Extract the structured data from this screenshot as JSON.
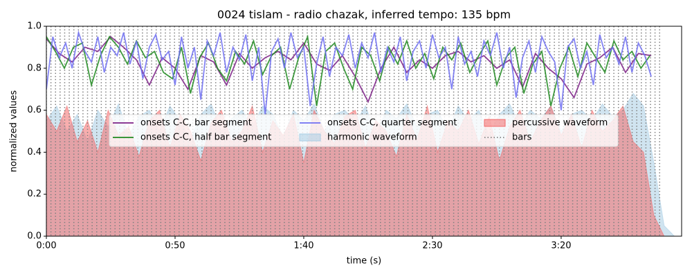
{
  "chart_data": {
    "type": "line",
    "title": "0024 tislam - radio chazak, inferred tempo: 135 bpm",
    "xlabel": "time (s)",
    "ylabel": "normalized values",
    "xlim": [
      0,
      246.8
    ],
    "ylim": [
      0,
      1
    ],
    "xticks": [
      {
        "value": 0,
        "label": "0:00"
      },
      {
        "value": 50,
        "label": "0:50"
      },
      {
        "value": 100,
        "label": "1:40"
      },
      {
        "value": 150,
        "label": "2:30"
      },
      {
        "value": 200,
        "label": "3:20"
      }
    ],
    "yticks": [
      {
        "value": 0,
        "label": "0.0"
      },
      0.2,
      0.4,
      0.6,
      0.8,
      {
        "value": 1,
        "label": "1.0"
      }
    ],
    "legend": "upper center",
    "series": [
      {
        "name": "onsets C-C, bar segment",
        "mark": "line",
        "color": "#7b1f86",
        "x": [
          0,
          5,
          10,
          15,
          20,
          25,
          30,
          35,
          40,
          45,
          50,
          55,
          60,
          65,
          70,
          75,
          80,
          85,
          90,
          95,
          100,
          105,
          110,
          115,
          120,
          125,
          130,
          135,
          140,
          145,
          150,
          155,
          160,
          165,
          170,
          175,
          180,
          185,
          190,
          195,
          200,
          205,
          210,
          215,
          220,
          225,
          230,
          235
        ],
        "values": [
          0.94,
          0.87,
          0.83,
          0.9,
          0.88,
          0.95,
          0.9,
          0.84,
          0.72,
          0.85,
          0.8,
          0.7,
          0.86,
          0.83,
          0.72,
          0.87,
          0.8,
          0.85,
          0.88,
          0.84,
          0.92,
          0.82,
          0.79,
          0.86,
          0.76,
          0.64,
          0.8,
          0.9,
          0.78,
          0.84,
          0.8,
          0.86,
          0.88,
          0.83,
          0.86,
          0.8,
          0.84,
          0.71,
          0.87,
          0.8,
          0.75,
          0.66,
          0.82,
          0.85,
          0.9,
          0.78,
          0.87,
          0.86
        ]
      },
      {
        "name": "onsets C-C, half bar segment",
        "mark": "line",
        "color": "#1f8a1f",
        "x": [
          0,
          3.5,
          7,
          10.5,
          14,
          17.5,
          21,
          24.5,
          28,
          31.5,
          35,
          38.5,
          42,
          45.5,
          49,
          52.5,
          56,
          59.5,
          63,
          66.5,
          70,
          73.5,
          77,
          80.5,
          84,
          87.5,
          91,
          94.5,
          98,
          101.5,
          105,
          108.5,
          112,
          115.5,
          119,
          122.5,
          126,
          129.5,
          133,
          136.5,
          140,
          143.5,
          147,
          150.5,
          154,
          157.5,
          161,
          164.5,
          168,
          171.5,
          175,
          178.5,
          182,
          185.5,
          189,
          192.5,
          196,
          199.5,
          203,
          206.5,
          210,
          213.5,
          217,
          220.5,
          224,
          227.5,
          231,
          234.5
        ],
        "values": [
          0.95,
          0.88,
          0.8,
          0.9,
          0.92,
          0.72,
          0.86,
          0.95,
          0.9,
          0.82,
          0.93,
          0.85,
          0.88,
          0.78,
          0.75,
          0.9,
          0.68,
          0.85,
          0.92,
          0.8,
          0.74,
          0.88,
          0.82,
          0.93,
          0.77,
          0.86,
          0.9,
          0.7,
          0.85,
          0.95,
          0.62,
          0.88,
          0.92,
          0.8,
          0.7,
          0.9,
          0.86,
          0.74,
          0.9,
          0.82,
          0.93,
          0.8,
          0.87,
          0.75,
          0.9,
          0.84,
          0.92,
          0.78,
          0.86,
          0.93,
          0.72,
          0.85,
          0.9,
          0.68,
          0.82,
          0.88,
          0.62,
          0.8,
          0.9,
          0.76,
          0.92,
          0.85,
          0.78,
          0.93,
          0.84,
          0.88,
          0.8,
          0.86
        ]
      },
      {
        "name": "onsets C-C, quarter segment",
        "mark": "line",
        "color": "#6e6ef2",
        "x": [
          0,
          2.5,
          5,
          7.5,
          10,
          12.5,
          15,
          17.5,
          20,
          22.5,
          25,
          27.5,
          30,
          32.5,
          35,
          37.5,
          40,
          42.5,
          45,
          47.5,
          50,
          52.5,
          55,
          57.5,
          60,
          62.5,
          65,
          67.5,
          70,
          72.5,
          75,
          77.5,
          80,
          82.5,
          85,
          87.5,
          90,
          92.5,
          95,
          97.5,
          100,
          102.5,
          105,
          107.5,
          110,
          112.5,
          115,
          117.5,
          120,
          122.5,
          125,
          127.5,
          130,
          132.5,
          135,
          137.5,
          140,
          142.5,
          145,
          147.5,
          150,
          152.5,
          155,
          157.5,
          160,
          162.5,
          165,
          167.5,
          170,
          172.5,
          175,
          177.5,
          180,
          182.5,
          185,
          187.5,
          190,
          192.5,
          195,
          197.5,
          200,
          202.5,
          205,
          207.5,
          210,
          212.5,
          215,
          217.5,
          220,
          222.5,
          225,
          227.5,
          230,
          232.5,
          235
        ],
        "values": [
          0.7,
          0.95,
          0.85,
          0.92,
          0.8,
          0.97,
          0.88,
          0.83,
          0.95,
          0.78,
          0.9,
          0.86,
          0.97,
          0.82,
          0.93,
          0.75,
          0.9,
          0.96,
          0.84,
          0.88,
          0.72,
          0.95,
          0.8,
          0.9,
          0.65,
          0.93,
          0.86,
          0.97,
          0.78,
          0.9,
          0.84,
          0.96,
          0.74,
          0.9,
          0.58,
          0.88,
          0.94,
          0.8,
          0.97,
          0.85,
          0.9,
          0.62,
          0.82,
          0.95,
          0.76,
          0.9,
          0.86,
          0.96,
          0.8,
          0.92,
          0.85,
          0.97,
          0.78,
          0.9,
          0.83,
          0.95,
          0.74,
          0.88,
          0.93,
          0.8,
          0.96,
          0.85,
          0.9,
          0.7,
          0.95,
          0.82,
          0.88,
          0.76,
          0.93,
          0.86,
          0.97,
          0.8,
          0.9,
          0.66,
          0.85,
          0.93,
          0.78,
          0.95,
          0.88,
          0.83,
          0.6,
          0.9,
          0.94,
          0.8,
          0.88,
          0.72,
          0.96,
          0.85,
          0.9,
          0.82,
          0.95,
          0.78,
          0.92,
          0.86,
          0.76
        ]
      },
      {
        "name": "harmonic waveform",
        "mark": "area",
        "color": "#a9cde4",
        "x": [
          0,
          4,
          8,
          12,
          16,
          20,
          24,
          28,
          32,
          36,
          40,
          44,
          48,
          52,
          56,
          60,
          64,
          68,
          72,
          76,
          80,
          84,
          88,
          92,
          96,
          100,
          104,
          108,
          112,
          116,
          120,
          124,
          128,
          132,
          136,
          140,
          144,
          148,
          152,
          156,
          160,
          164,
          168,
          172,
          176,
          180,
          184,
          188,
          192,
          196,
          200,
          204,
          208,
          212,
          216,
          220,
          224,
          228,
          232,
          236,
          240,
          244
        ],
        "values": [
          0.55,
          0.62,
          0.5,
          0.58,
          0.45,
          0.6,
          0.52,
          0.63,
          0.48,
          0.57,
          0.6,
          0.5,
          0.62,
          0.55,
          0.46,
          0.58,
          0.63,
          0.5,
          0.56,
          0.6,
          0.52,
          0.62,
          0.58,
          0.47,
          0.6,
          0.55,
          0.63,
          0.5,
          0.58,
          0.6,
          0.54,
          0.62,
          0.48,
          0.6,
          0.56,
          0.63,
          0.52,
          0.58,
          0.6,
          0.5,
          0.62,
          0.55,
          0.6,
          0.48,
          0.58,
          0.63,
          0.52,
          0.6,
          0.56,
          0.62,
          0.5,
          0.58,
          0.6,
          0.55,
          0.63,
          0.57,
          0.6,
          0.68,
          0.62,
          0.35,
          0.05,
          0
        ]
      },
      {
        "name": "percussive waveform",
        "mark": "area",
        "color": "#f26b6b",
        "x": [
          0,
          4,
          8,
          12,
          16,
          20,
          24,
          28,
          32,
          36,
          40,
          44,
          48,
          52,
          56,
          60,
          64,
          68,
          72,
          76,
          80,
          84,
          88,
          92,
          96,
          100,
          104,
          108,
          112,
          116,
          120,
          124,
          128,
          132,
          136,
          140,
          144,
          148,
          152,
          156,
          160,
          164,
          168,
          172,
          176,
          180,
          184,
          188,
          192,
          196,
          200,
          204,
          208,
          212,
          216,
          220,
          224,
          228,
          232,
          236,
          240,
          244
        ],
        "values": [
          0.58,
          0.5,
          0.62,
          0.45,
          0.55,
          0.4,
          0.6,
          0.48,
          0.52,
          0.38,
          0.55,
          0.6,
          0.42,
          0.58,
          0.5,
          0.36,
          0.54,
          0.6,
          0.45,
          0.5,
          0.62,
          0.4,
          0.55,
          0.48,
          0.58,
          0.35,
          0.6,
          0.5,
          0.44,
          0.57,
          0.6,
          0.42,
          0.55,
          0.5,
          0.38,
          0.58,
          0.46,
          0.62,
          0.4,
          0.55,
          0.5,
          0.6,
          0.44,
          0.57,
          0.36,
          0.52,
          0.6,
          0.45,
          0.55,
          0.62,
          0.48,
          0.58,
          0.42,
          0.6,
          0.5,
          0.55,
          0.62,
          0.45,
          0.4,
          0.1,
          0,
          0
        ]
      },
      {
        "name": "bars",
        "mark": "vlines",
        "color": "#808080",
        "x": [
          0,
          1.78,
          3.56,
          5.33,
          7.11,
          8.89,
          10.67,
          12.45,
          14.22,
          16.0,
          17.78,
          19.56,
          21.34,
          23.11,
          24.89,
          26.67,
          28.45,
          30.23,
          32.0,
          33.78,
          35.56,
          37.34,
          39.12,
          40.89,
          42.67,
          44.45,
          46.23,
          48.01,
          49.78,
          51.56,
          53.34,
          55.12,
          56.9,
          58.67,
          60.45,
          62.23,
          64.01,
          65.79,
          67.56,
          69.34,
          71.12,
          72.9,
          74.68,
          76.45,
          78.23,
          80.01,
          81.79,
          83.57,
          85.34,
          87.12,
          88.9,
          90.68,
          92.46,
          94.23,
          96.01,
          97.79,
          99.57,
          101.35,
          103.12,
          104.9,
          106.68,
          108.46,
          110.24,
          112.01,
          113.79,
          115.57,
          117.35,
          119.13,
          120.9,
          122.68,
          124.46,
          126.24,
          128.02,
          129.79,
          131.57,
          133.35,
          135.13,
          136.91,
          138.68,
          140.46,
          142.24,
          144.02,
          145.8,
          147.57,
          149.35,
          151.13,
          152.91,
          154.69,
          156.46,
          158.24,
          160.02,
          161.8,
          163.58,
          165.35,
          167.13,
          168.91,
          170.69,
          172.47,
          174.24,
          176.02,
          177.8,
          179.58,
          181.36,
          183.13,
          184.91,
          186.69,
          188.47,
          190.25,
          192.02,
          193.8,
          195.58,
          197.36,
          199.14,
          200.91,
          202.69,
          204.47,
          206.25,
          208.03,
          209.8,
          211.58,
          213.36,
          215.14,
          216.92,
          218.69,
          220.47,
          222.25,
          224.03,
          225.81,
          227.58,
          229.36,
          231.14,
          232.92,
          234.7,
          236.47,
          238.25
        ]
      }
    ]
  }
}
